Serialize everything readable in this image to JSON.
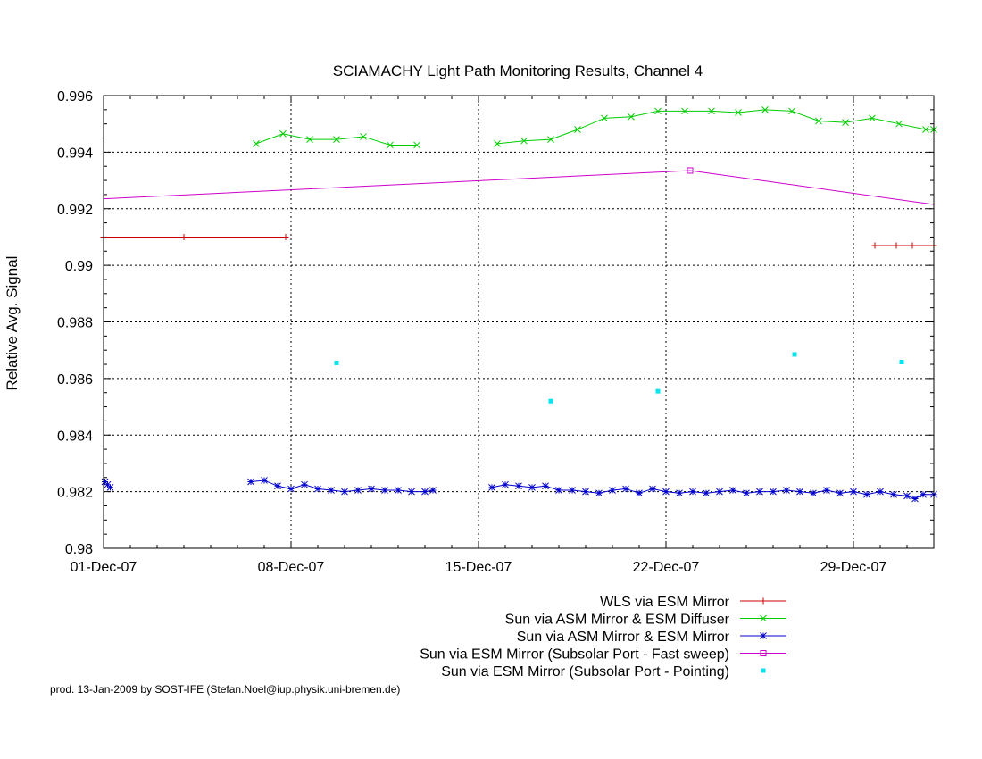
{
  "chart_data": {
    "type": "line",
    "title": "SCIAMACHY Light Path Monitoring Results, Channel 4",
    "xlabel": "",
    "ylabel": "Relative Avg. Signal",
    "xlim": [
      0,
      31
    ],
    "ylim": [
      0.98,
      0.996
    ],
    "x_ticks": [
      {
        "day": 0,
        "label": "01-Dec-07"
      },
      {
        "day": 7,
        "label": "08-Dec-07"
      },
      {
        "day": 14,
        "label": "15-Dec-07"
      },
      {
        "day": 21,
        "label": "22-Dec-07"
      },
      {
        "day": 28,
        "label": "29-Dec-07"
      }
    ],
    "y_ticks": [
      {
        "value": 0.98,
        "label": "0.98"
      },
      {
        "value": 0.982,
        "label": "0.982"
      },
      {
        "value": 0.984,
        "label": "0.984"
      },
      {
        "value": 0.986,
        "label": "0.986"
      },
      {
        "value": 0.988,
        "label": "0.988"
      },
      {
        "value": 0.99,
        "label": "0.99"
      },
      {
        "value": 0.992,
        "label": "0.992"
      },
      {
        "value": 0.994,
        "label": "0.994"
      },
      {
        "value": 0.996,
        "label": "0.996"
      }
    ],
    "grid": true,
    "legend_position": "bottom-right",
    "series": [
      {
        "name": "WLS via ESM Mirror",
        "color": "#cc0000",
        "style": "linespoints",
        "marker": "plus",
        "segments": [
          [
            [
              0,
              0.991
            ],
            [
              3.0,
              0.991
            ],
            [
              6.8,
              0.991
            ]
          ],
          [
            [
              28.8,
              0.9907
            ],
            [
              29.6,
              0.9907
            ],
            [
              30.2,
              0.9907
            ],
            [
              31.0,
              0.9907
            ]
          ]
        ]
      },
      {
        "name": "Sun via ASM Mirror & ESM Diffuser",
        "color": "#00cc00",
        "style": "linespoints",
        "marker": "cross",
        "segments": [
          [
            [
              5.7,
              0.9943
            ],
            [
              6.7,
              0.99465
            ],
            [
              7.7,
              0.99445
            ],
            [
              8.7,
              0.99445
            ],
            [
              9.7,
              0.99455
            ],
            [
              10.7,
              0.99425
            ],
            [
              11.7,
              0.99425
            ]
          ],
          [
            [
              14.7,
              0.9943
            ],
            [
              15.7,
              0.9944
            ],
            [
              16.7,
              0.99445
            ],
            [
              17.7,
              0.9948
            ],
            [
              18.7,
              0.9952
            ],
            [
              19.7,
              0.99525
            ],
            [
              20.7,
              0.99545
            ],
            [
              21.7,
              0.99545
            ],
            [
              22.7,
              0.99545
            ],
            [
              23.7,
              0.9954
            ],
            [
              24.7,
              0.9955
            ],
            [
              25.7,
              0.99545
            ],
            [
              26.7,
              0.9951
            ],
            [
              27.7,
              0.99505
            ],
            [
              28.7,
              0.9952
            ],
            [
              29.7,
              0.995
            ],
            [
              30.7,
              0.9948
            ],
            [
              31.0,
              0.9948
            ]
          ]
        ]
      },
      {
        "name": "Sun via ASM Mirror & ESM Mirror",
        "color": "#0000cc",
        "style": "linespoints",
        "marker": "star",
        "segments": [
          [
            [
              0.05,
              0.98235
            ],
            [
              0.15,
              0.98225
            ],
            [
              0.25,
              0.98215
            ]
          ],
          [
            [
              5.5,
              0.98235
            ],
            [
              6.0,
              0.9824
            ],
            [
              6.5,
              0.9822
            ],
            [
              7.0,
              0.9821
            ],
            [
              7.5,
              0.98225
            ],
            [
              8.0,
              0.9821
            ],
            [
              8.5,
              0.98205
            ],
            [
              9.0,
              0.982
            ],
            [
              9.5,
              0.98205
            ],
            [
              10.0,
              0.9821
            ],
            [
              10.5,
              0.98205
            ],
            [
              11.0,
              0.98205
            ],
            [
              11.5,
              0.982
            ],
            [
              12.0,
              0.982
            ],
            [
              12.3,
              0.98205
            ]
          ],
          [
            [
              14.5,
              0.98215
            ],
            [
              15.0,
              0.98225
            ],
            [
              15.5,
              0.9822
            ],
            [
              16.0,
              0.98215
            ],
            [
              16.5,
              0.9822
            ],
            [
              17.0,
              0.98205
            ],
            [
              17.5,
              0.98205
            ],
            [
              18.0,
              0.982
            ],
            [
              18.5,
              0.98195
            ],
            [
              19.0,
              0.98205
            ],
            [
              19.5,
              0.9821
            ],
            [
              20.0,
              0.98195
            ],
            [
              20.5,
              0.9821
            ],
            [
              21.0,
              0.982
            ],
            [
              21.5,
              0.98195
            ],
            [
              22.0,
              0.982
            ],
            [
              22.5,
              0.98195
            ],
            [
              23.0,
              0.982
            ],
            [
              23.5,
              0.98205
            ],
            [
              24.0,
              0.98195
            ],
            [
              24.5,
              0.982
            ],
            [
              25.0,
              0.982
            ],
            [
              25.5,
              0.98205
            ],
            [
              26.0,
              0.982
            ],
            [
              26.5,
              0.98195
            ],
            [
              27.0,
              0.98205
            ],
            [
              27.5,
              0.98195
            ],
            [
              28.0,
              0.982
            ],
            [
              28.5,
              0.9819
            ],
            [
              29.0,
              0.982
            ],
            [
              29.5,
              0.9819
            ],
            [
              30.0,
              0.98185
            ],
            [
              30.3,
              0.98175
            ],
            [
              30.6,
              0.9819
            ],
            [
              31.0,
              0.9819
            ]
          ]
        ]
      },
      {
        "name": "Sun via ESM Mirror (Subsolar Port - Fast sweep)",
        "color": "#cc00cc",
        "style": "linespoints",
        "marker": "square",
        "segments": [
          [
            [
              0,
              0.99235
            ],
            [
              21.9,
              0.99335
            ],
            [
              31.0,
              0.99215
            ]
          ]
        ],
        "marked_points": [
          [
            21.9,
            0.99335
          ]
        ]
      },
      {
        "name": "Sun via ESM Mirror (Subsolar Port - Pointing)",
        "color": "#00e5ee",
        "style": "points",
        "marker": "dot",
        "points": [
          [
            8.7,
            0.98655
          ],
          [
            16.7,
            0.9852
          ],
          [
            20.7,
            0.98555
          ],
          [
            25.8,
            0.98685
          ],
          [
            29.8,
            0.98658
          ]
        ]
      }
    ]
  },
  "footer": "prod. 13-Jan-2009 by SOST-IFE (Stefan.Noel@iup.physik.uni-bremen.de)"
}
